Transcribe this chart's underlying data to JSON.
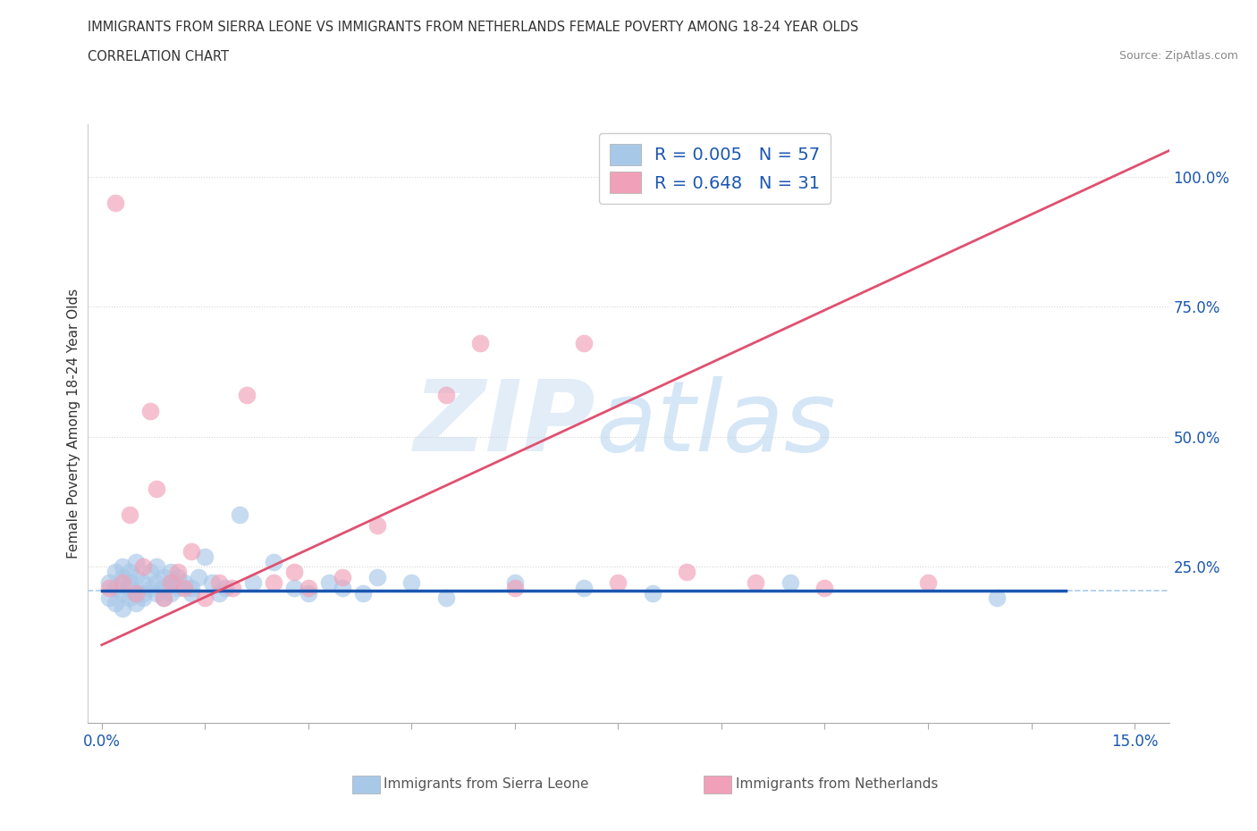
{
  "title_line1": "IMMIGRANTS FROM SIERRA LEONE VS IMMIGRANTS FROM NETHERLANDS FEMALE POVERTY AMONG 18-24 YEAR OLDS",
  "title_line2": "CORRELATION CHART",
  "source_text": "Source: ZipAtlas.com",
  "ylabel": "Female Poverty Among 18-24 Year Olds",
  "blue_R": 0.005,
  "blue_N": 57,
  "pink_R": 0.648,
  "pink_N": 31,
  "blue_color": "#a8c8e8",
  "pink_color": "#f0a0b8",
  "blue_line_color": "#1a56b0",
  "pink_line_color": "#e05070",
  "ref_line_color": "#aaccee",
  "grid_line_color": "#cccccc",
  "watermark_color": "#c8ddf0",
  "watermark_text": "ZIPatlas",
  "legend_text_color": "#1a56b0",
  "right_tick_color": "#1a56b0",
  "x_tick_color": "#1a56b0",
  "xlim": [
    -0.002,
    0.155
  ],
  "ylim": [
    -0.05,
    1.1
  ],
  "blue_trend_x": [
    0.0,
    0.14
  ],
  "blue_trend_y": [
    0.205,
    0.205
  ],
  "pink_trend_x": [
    0.0,
    0.155
  ],
  "pink_trend_y": [
    0.1,
    1.05
  ],
  "ref_line_y": 0.205,
  "blue_x": [
    0.001,
    0.001,
    0.002,
    0.002,
    0.002,
    0.003,
    0.003,
    0.003,
    0.003,
    0.004,
    0.004,
    0.004,
    0.004,
    0.005,
    0.005,
    0.005,
    0.005,
    0.006,
    0.006,
    0.006,
    0.007,
    0.007,
    0.008,
    0.008,
    0.008,
    0.009,
    0.009,
    0.009,
    0.01,
    0.01,
    0.01,
    0.011,
    0.011,
    0.012,
    0.013,
    0.013,
    0.014,
    0.015,
    0.016,
    0.017,
    0.018,
    0.02,
    0.022,
    0.025,
    0.028,
    0.03,
    0.033,
    0.035,
    0.038,
    0.04,
    0.045,
    0.05,
    0.06,
    0.07,
    0.08,
    0.1,
    0.13
  ],
  "blue_y": [
    0.22,
    0.19,
    0.21,
    0.18,
    0.24,
    0.2,
    0.23,
    0.17,
    0.25,
    0.22,
    0.19,
    0.24,
    0.21,
    0.2,
    0.23,
    0.18,
    0.26,
    0.22,
    0.2,
    0.19,
    0.24,
    0.21,
    0.22,
    0.2,
    0.25,
    0.21,
    0.19,
    0.23,
    0.22,
    0.24,
    0.2,
    0.21,
    0.23,
    0.22,
    0.21,
    0.2,
    0.23,
    0.27,
    0.22,
    0.2,
    0.21,
    0.35,
    0.22,
    0.26,
    0.21,
    0.2,
    0.22,
    0.21,
    0.2,
    0.23,
    0.22,
    0.19,
    0.22,
    0.21,
    0.2,
    0.22,
    0.19
  ],
  "pink_x": [
    0.001,
    0.002,
    0.003,
    0.004,
    0.005,
    0.006,
    0.007,
    0.008,
    0.009,
    0.01,
    0.011,
    0.012,
    0.013,
    0.015,
    0.017,
    0.019,
    0.021,
    0.025,
    0.028,
    0.03,
    0.035,
    0.04,
    0.05,
    0.055,
    0.06,
    0.07,
    0.075,
    0.085,
    0.095,
    0.105,
    0.12
  ],
  "pink_y": [
    0.21,
    0.95,
    0.22,
    0.35,
    0.2,
    0.25,
    0.55,
    0.4,
    0.19,
    0.22,
    0.24,
    0.21,
    0.28,
    0.19,
    0.22,
    0.21,
    0.58,
    0.22,
    0.24,
    0.21,
    0.23,
    0.33,
    0.58,
    0.68,
    0.21,
    0.68,
    0.22,
    0.24,
    0.22,
    0.21,
    0.22
  ]
}
